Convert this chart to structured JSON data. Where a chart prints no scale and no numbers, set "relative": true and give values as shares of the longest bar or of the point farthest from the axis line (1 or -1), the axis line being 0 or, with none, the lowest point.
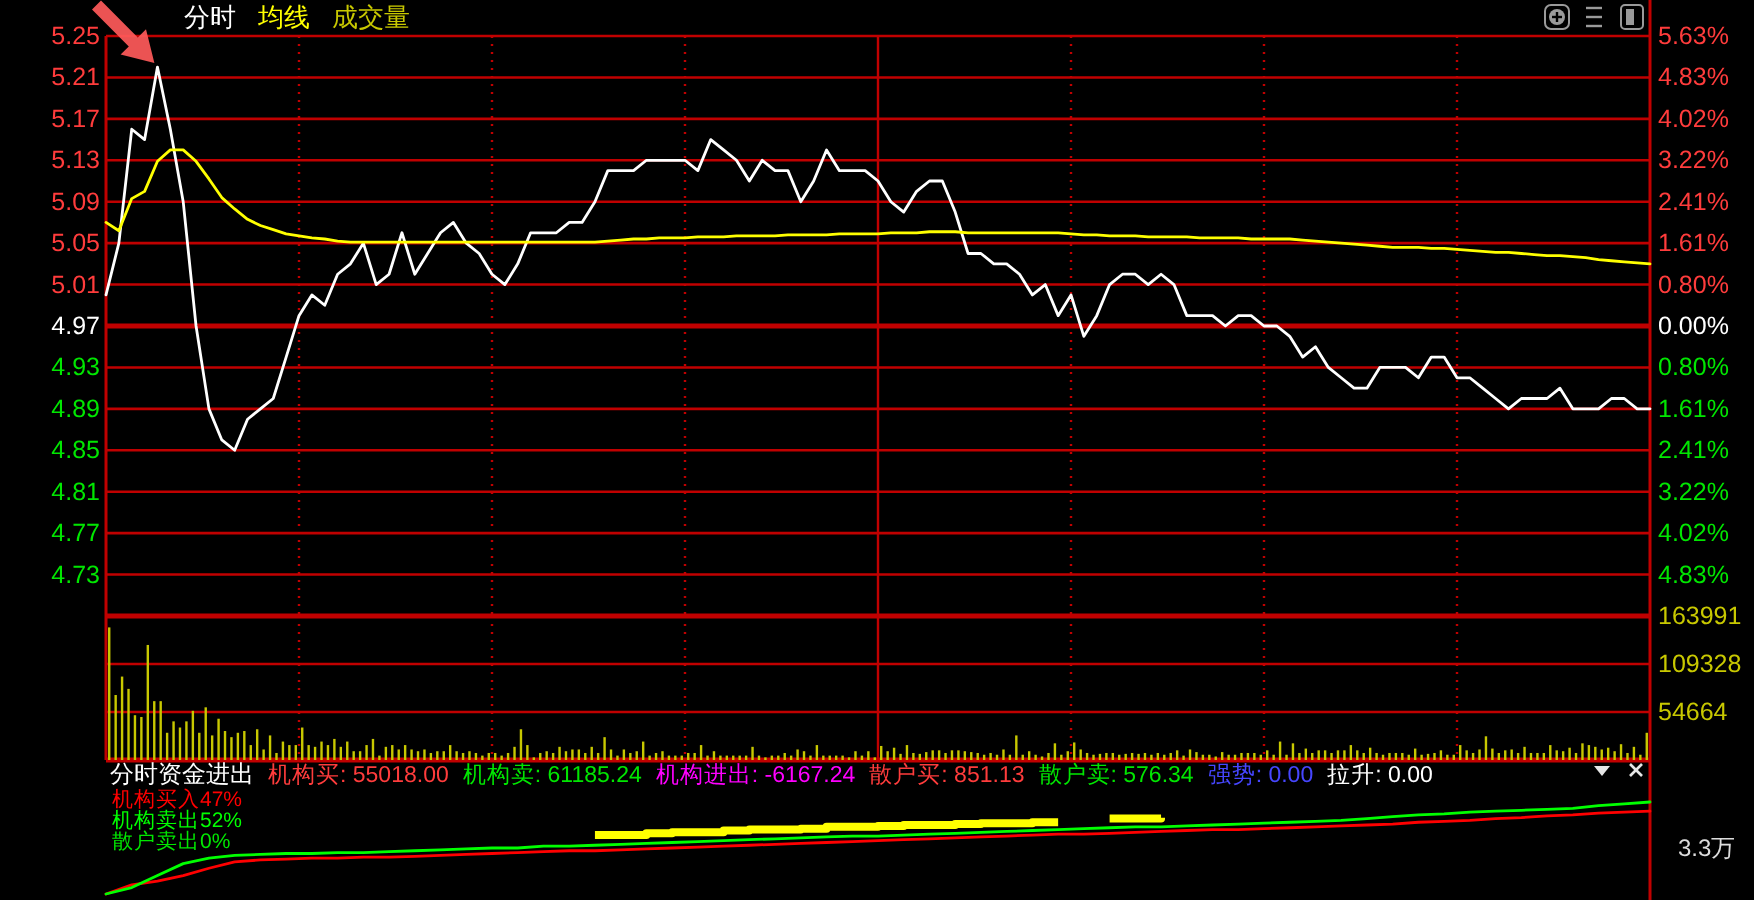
{
  "chart_data": [
    {
      "type": "line",
      "legend": "top",
      "grid": true,
      "categories": [
        null,
        null,
        null,
        null,
        null,
        null,
        null,
        null,
        null,
        null,
        null,
        null,
        null,
        null,
        null,
        null,
        null,
        null,
        null,
        null,
        null,
        null,
        null,
        null,
        null,
        null,
        null,
        null,
        null,
        null,
        null,
        null,
        null,
        null,
        null,
        null,
        null,
        null,
        null,
        null,
        null,
        null,
        null,
        null,
        null,
        null,
        null,
        null,
        null,
        null,
        null,
        null,
        null,
        null,
        null,
        null,
        null,
        null,
        null,
        null,
        null,
        null,
        null,
        null,
        null,
        null,
        null,
        null,
        null,
        null,
        null,
        null,
        null,
        null,
        null,
        null,
        null,
        null,
        null,
        null,
        null,
        null,
        null,
        null,
        null,
        null,
        null,
        null,
        null,
        null,
        null,
        null,
        null,
        null,
        null,
        null,
        null,
        null,
        null,
        null,
        null,
        null,
        null,
        null,
        null,
        null,
        null,
        null,
        null,
        null,
        null,
        null,
        null,
        null,
        null,
        null,
        null,
        null,
        null,
        null,
        null
      ],
      "series": [
        {
          "name": "分时",
          "color": "#ffffff",
          "values": [
            5.0,
            5.05,
            5.16,
            5.15,
            5.22,
            5.16,
            5.09,
            4.97,
            4.89,
            4.86,
            4.85,
            4.88,
            4.89,
            4.9,
            4.94,
            4.98,
            5.0,
            4.99,
            5.02,
            5.03,
            5.05,
            5.01,
            5.02,
            5.06,
            5.02,
            5.04,
            5.06,
            5.07,
            5.05,
            5.04,
            5.02,
            5.01,
            5.03,
            5.06,
            5.06,
            5.06,
            5.07,
            5.07,
            5.09,
            5.12,
            5.12,
            5.12,
            5.13,
            5.13,
            5.13,
            5.13,
            5.12,
            5.15,
            5.14,
            5.13,
            5.11,
            5.13,
            5.12,
            5.12,
            5.09,
            5.11,
            5.14,
            5.12,
            5.12,
            5.12,
            5.11,
            5.09,
            5.08,
            5.1,
            5.11,
            5.11,
            5.08,
            5.04,
            5.04,
            5.03,
            5.03,
            5.02,
            5.0,
            5.01,
            4.98,
            5.0,
            4.96,
            4.98,
            5.01,
            5.02,
            5.02,
            5.01,
            5.02,
            5.01,
            4.98,
            4.98,
            4.98,
            4.97,
            4.98,
            4.98,
            4.97,
            4.97,
            4.96,
            4.94,
            4.95,
            4.93,
            4.92,
            4.91,
            4.91,
            4.93,
            4.93,
            4.93,
            4.92,
            4.94,
            4.94,
            4.92,
            4.92,
            4.91,
            4.9,
            4.89,
            4.9,
            4.9,
            4.9,
            4.91,
            4.89,
            4.89,
            4.89,
            4.9,
            4.9,
            4.89,
            4.89
          ]
        },
        {
          "name": "均线",
          "color": "#ffff00",
          "values": [
            5.07,
            5.062,
            5.093,
            5.1,
            5.129,
            5.14,
            5.14,
            5.129,
            5.112,
            5.094,
            5.083,
            5.073,
            5.067,
            5.063,
            5.059,
            5.057,
            5.055,
            5.054,
            5.052,
            5.051,
            5.051,
            5.051,
            5.051,
            5.051,
            5.051,
            5.051,
            5.051,
            5.051,
            5.051,
            5.051,
            5.051,
            5.051,
            5.051,
            5.051,
            5.051,
            5.051,
            5.051,
            5.051,
            5.051,
            5.052,
            5.053,
            5.054,
            5.054,
            5.055,
            5.055,
            5.055,
            5.056,
            5.056,
            5.056,
            5.057,
            5.057,
            5.057,
            5.057,
            5.058,
            5.058,
            5.058,
            5.058,
            5.059,
            5.059,
            5.059,
            5.059,
            5.06,
            5.06,
            5.06,
            5.061,
            5.061,
            5.061,
            5.06,
            5.06,
            5.06,
            5.06,
            5.06,
            5.06,
            5.06,
            5.06,
            5.059,
            5.058,
            5.058,
            5.057,
            5.057,
            5.057,
            5.056,
            5.056,
            5.056,
            5.056,
            5.055,
            5.055,
            5.055,
            5.055,
            5.054,
            5.054,
            5.054,
            5.054,
            5.053,
            5.052,
            5.051,
            5.05,
            5.049,
            5.048,
            5.047,
            5.046,
            5.046,
            5.046,
            5.045,
            5.045,
            5.044,
            5.043,
            5.042,
            5.041,
            5.041,
            5.04,
            5.039,
            5.038,
            5.038,
            5.037,
            5.036,
            5.034,
            5.033,
            5.032,
            5.031,
            5.03
          ]
        }
      ],
      "ylim": [
        4.69,
        5.25
      ],
      "yticks": [
        4.73,
        4.77,
        4.81,
        4.85,
        4.89,
        4.93,
        4.97,
        5.01,
        5.05,
        5.09,
        5.13,
        5.17,
        5.21,
        5.25
      ],
      "y2lim": [
        -5.63,
        5.63
      ],
      "y2ticks": [
        {
          "value": -4.83,
          "label": "4.83%"
        },
        {
          "value": -4.02,
          "label": "4.02%"
        },
        {
          "value": -3.22,
          "label": "3.22%"
        },
        {
          "value": -2.41,
          "label": "2.41%"
        },
        {
          "value": -1.61,
          "label": "1.61%"
        },
        {
          "value": -0.8,
          "label": "0.80%"
        },
        {
          "value": 0,
          "label": "0.00%"
        },
        {
          "value": 0.8,
          "label": "0.80%"
        },
        {
          "value": 1.61,
          "label": "1.61%"
        },
        {
          "value": 2.41,
          "label": "2.41%"
        },
        {
          "value": 3.22,
          "label": "3.22%"
        },
        {
          "value": 4.02,
          "label": "4.02%"
        },
        {
          "value": 4.83,
          "label": "4.83%"
        },
        {
          "value": 5.63,
          "label": "5.63%"
        }
      ],
      "ref_lines": [
        {
          "axis": "y",
          "value": 4.97,
          "color": "#c00000"
        }
      ]
    },
    {
      "type": "bar",
      "legend": "top",
      "grid": true,
      "categories": [
        null,
        null,
        null,
        null,
        null,
        null,
        null,
        null,
        null,
        null,
        null,
        null,
        null,
        null,
        null,
        null,
        null,
        null,
        null,
        null,
        null,
        null,
        null,
        null,
        null,
        null,
        null,
        null,
        null,
        null,
        null,
        null,
        null,
        null,
        null,
        null,
        null,
        null,
        null,
        null,
        null,
        null,
        null,
        null,
        null,
        null,
        null,
        null,
        null,
        null,
        null,
        null,
        null,
        null,
        null,
        null,
        null,
        null,
        null,
        null,
        null,
        null,
        null,
        null,
        null,
        null,
        null,
        null,
        null,
        null,
        null,
        null,
        null,
        null,
        null,
        null,
        null,
        null,
        null,
        null,
        null,
        null,
        null,
        null,
        null,
        null,
        null,
        null,
        null,
        null,
        null,
        null,
        null,
        null,
        null,
        null,
        null,
        null,
        null,
        null,
        null,
        null,
        null,
        null,
        null,
        null,
        null,
        null,
        null,
        null,
        null,
        null,
        null,
        null,
        null,
        null,
        null,
        null,
        null,
        null,
        null,
        null,
        null,
        null,
        null,
        null,
        null,
        null,
        null,
        null,
        null,
        null,
        null,
        null,
        null,
        null,
        null,
        null,
        null,
        null,
        null,
        null,
        null,
        null,
        null,
        null,
        null,
        null,
        null,
        null,
        null,
        null,
        null,
        null,
        null,
        null,
        null,
        null,
        null,
        null,
        null,
        null,
        null,
        null,
        null,
        null,
        null,
        null,
        null,
        null,
        null,
        null,
        null,
        null,
        null,
        null,
        null,
        null,
        null,
        null,
        null,
        null,
        null,
        null,
        null,
        null,
        null,
        null,
        null,
        null,
        null,
        null,
        null,
        null,
        null,
        null,
        null,
        null,
        null,
        null,
        null,
        null,
        null,
        null,
        null,
        null,
        null,
        null,
        null,
        null,
        null,
        null,
        null,
        null,
        null,
        null,
        null,
        null,
        null,
        null,
        null,
        null,
        null,
        null,
        null,
        null,
        null,
        null,
        null,
        null,
        null,
        null,
        null,
        null,
        null,
        null,
        null,
        null,
        null,
        null
      ],
      "series": [
        {
          "name": "成交量",
          "color": "#c8c800",
          "axis": "y2",
          "values": [
            151000,
            74000,
            95000,
            81000,
            51000,
            49000,
            131000,
            67000,
            67000,
            31000,
            44000,
            37000,
            44000,
            56000,
            31000,
            60000,
            28000,
            47000,
            33000,
            26000,
            31000,
            33000,
            17000,
            35000,
            12000,
            28000,
            8000,
            21000,
            17000,
            17000,
            37000,
            17000,
            15000,
            21000,
            17000,
            24000,
            15000,
            21000,
            10000,
            10000,
            17000,
            24000,
            5000,
            15000,
            17000,
            12000,
            17000,
            12000,
            10000,
            12000,
            8000,
            10000,
            10000,
            17000,
            10000,
            8000,
            10000,
            8000,
            5000,
            8000,
            8000,
            5000,
            8000,
            15000,
            35000,
            17000,
            3000,
            8000,
            10000,
            8000,
            15000,
            10000,
            12000,
            12000,
            8000,
            15000,
            8000,
            26000,
            12000,
            5000,
            12000,
            8000,
            10000,
            21000,
            5000,
            8000,
            10000,
            5000,
            5000,
            5000,
            8000,
            8000,
            17000,
            5000,
            10000,
            5000,
            5000,
            5000,
            5000,
            5000,
            15000,
            5000,
            3000,
            5000,
            5000,
            8000,
            5000,
            12000,
            10000,
            5000,
            17000,
            5000,
            5000,
            5000,
            5000,
            3000,
            10000,
            5000,
            10000,
            3000,
            16000,
            10000,
            14000,
            7000,
            17000,
            8000,
            7000,
            9000,
            11000,
            11000,
            8000,
            11000,
            11000,
            10000,
            9000,
            8000,
            6000,
            8000,
            6000,
            12000,
            6000,
            28000,
            6000,
            10000,
            6000,
            4000,
            8000,
            19000,
            6000,
            10000,
            20000,
            12000,
            8000,
            6000,
            7000,
            8000,
            8000,
            6000,
            7000,
            8000,
            7000,
            8000,
            6000,
            8000,
            6000,
            8000,
            11000,
            5000,
            12000,
            9000,
            6000,
            6000,
            4000,
            9000,
            6000,
            6000,
            8000,
            8000,
            8000,
            6000,
            11000,
            6000,
            21000,
            6000,
            19000,
            8000,
            13000,
            8000,
            11000,
            11000,
            8000,
            11000,
            11000,
            17000,
            11000,
            8000,
            14000,
            8000,
            6000,
            8000,
            8000,
            8000,
            6000,
            13000,
            6000,
            7000,
            8000,
            11000,
            6000,
            6000,
            17000,
            11000,
            8000,
            12000,
            27000,
            13000,
            8000,
            11000,
            12000,
            8000,
            15000,
            8000,
            8000,
            8000,
            17000,
            11000,
            10000,
            14000,
            8000,
            19000,
            17000,
            15000,
            12000,
            14000,
            10000,
            18000,
            8000,
            15000,
            6000,
            31000
          ]
        }
      ],
      "y2lim": [
        0,
        163991
      ],
      "y2ticks": [
        54664,
        109328,
        163991
      ]
    },
    {
      "type": "line",
      "title": "分时资金进出",
      "relative": true,
      "legend": "top left",
      "y2label": "3.3万",
      "categories": [
        null,
        null,
        null,
        null,
        null,
        null,
        null,
        null,
        null,
        null,
        null,
        null,
        null,
        null,
        null,
        null,
        null,
        null,
        null,
        null,
        null,
        null,
        null,
        null,
        null,
        null,
        null,
        null,
        null,
        null,
        null,
        null,
        null,
        null,
        null,
        null,
        null,
        null,
        null,
        null,
        null,
        null,
        null,
        null,
        null,
        null,
        null,
        null,
        null,
        null,
        null,
        null,
        null,
        null,
        null,
        null,
        null,
        null,
        null,
        null,
        null
      ],
      "series": [
        {
          "name": "机构买入47%",
          "color": "#ff0000",
          "values": [
            0.0,
            0.1,
            0.14,
            0.2,
            0.28,
            0.35,
            0.37,
            0.38,
            0.39,
            0.39,
            0.4,
            0.4,
            0.41,
            0.42,
            0.43,
            0.44,
            0.45,
            0.46,
            0.47,
            0.47,
            0.48,
            0.49,
            0.5,
            0.51,
            0.52,
            0.53,
            0.54,
            0.55,
            0.56,
            0.57,
            0.58,
            0.59,
            0.6,
            0.61,
            0.62,
            0.63,
            0.64,
            0.65,
            0.65,
            0.66,
            0.67,
            0.68,
            0.69,
            0.7,
            0.7,
            0.71,
            0.72,
            0.73,
            0.74,
            0.75,
            0.76,
            0.78,
            0.79,
            0.8,
            0.82,
            0.83,
            0.85,
            0.86,
            0.88,
            0.89,
            0.9
          ]
        },
        {
          "name": "机构卖出52%",
          "color": "#00ff00",
          "values": [
            0.0,
            0.07,
            0.2,
            0.33,
            0.39,
            0.42,
            0.43,
            0.44,
            0.44,
            0.45,
            0.45,
            0.46,
            0.47,
            0.48,
            0.49,
            0.5,
            0.5,
            0.52,
            0.52,
            0.53,
            0.54,
            0.55,
            0.56,
            0.57,
            0.58,
            0.59,
            0.6,
            0.61,
            0.62,
            0.63,
            0.63,
            0.64,
            0.65,
            0.66,
            0.67,
            0.68,
            0.69,
            0.7,
            0.71,
            0.72,
            0.73,
            0.73,
            0.74,
            0.75,
            0.76,
            0.77,
            0.78,
            0.79,
            0.8,
            0.82,
            0.84,
            0.86,
            0.87,
            0.89,
            0.9,
            0.91,
            0.92,
            0.93,
            0.96,
            0.98,
            1.0
          ]
        },
        {
          "type": "step",
          "color": "#ffff00",
          "values": [
            null,
            null,
            null,
            null,
            null,
            null,
            null,
            null,
            null,
            null,
            null,
            null,
            null,
            null,
            null,
            null,
            null,
            null,
            null,
            0.64,
            0.64,
            0.66,
            0.67,
            0.67,
            0.69,
            0.7,
            0.7,
            0.71,
            0.73,
            0.73,
            0.74,
            0.75,
            0.75,
            0.76,
            0.77,
            0.77,
            0.78,
            0.78,
            null,
            0.82,
            0.82,
            0.83,
            null,
            null,
            null,
            null,
            null,
            null,
            null,
            null,
            null,
            null,
            null,
            null,
            null,
            null,
            null,
            null,
            null,
            null,
            null
          ]
        }
      ],
      "annotations": [
        "机构买: 55018.00",
        "机构卖: 61185.24",
        "机构进出: -6167.24",
        "散户买: 851.13",
        "散户卖: 576.34",
        "强势: 0.00",
        "拉升: 0.00",
        "散户卖出0%"
      ]
    }
  ]
}
